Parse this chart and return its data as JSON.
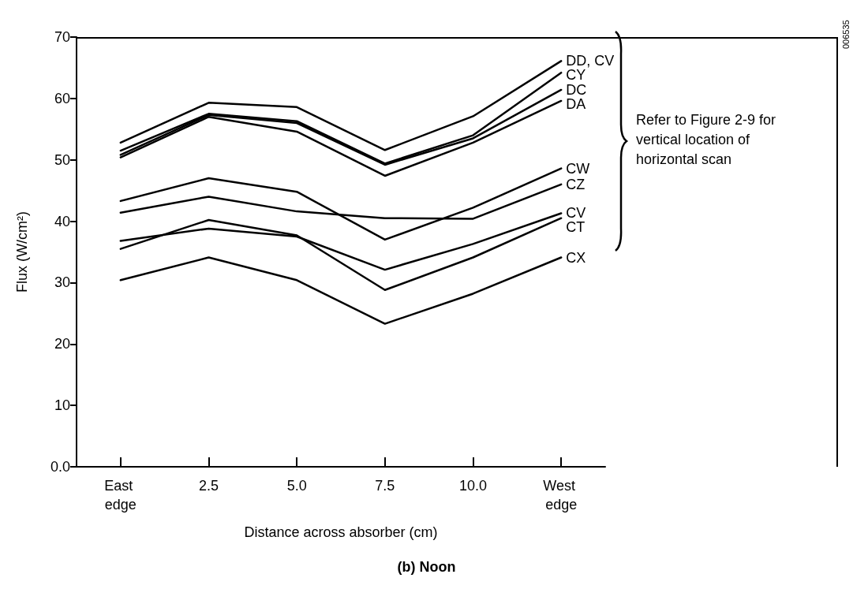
{
  "chart_data": {
    "type": "line",
    "title": "(b) Noon",
    "xlabel": "Distance across absorber (cm)",
    "ylabel": "Flux (W/cm²)",
    "categories": [
      "East edge",
      "2.5",
      "5.0",
      "7.5",
      "10.0",
      "West edge"
    ],
    "series": [
      {
        "name": "DD, CV",
        "color": "#000000",
        "values": [
          52.8,
          59.3,
          58.6,
          51.6,
          57.1,
          66.1
        ]
      },
      {
        "name": "CY",
        "color": "#000000",
        "values": [
          51.5,
          57.5,
          56.3,
          49.4,
          54.0,
          64.2
        ]
      },
      {
        "name": "DC",
        "color": "#000000",
        "values": [
          50.8,
          57.3,
          56.0,
          49.2,
          53.5,
          61.4
        ]
      },
      {
        "name": "DA",
        "color": "#000000",
        "values": [
          50.4,
          57.0,
          54.6,
          47.4,
          52.8,
          59.6
        ]
      },
      {
        "name": "CW",
        "color": "#000000",
        "values": [
          43.3,
          47.0,
          44.8,
          37.0,
          42.2,
          48.6
        ]
      },
      {
        "name": "CZ",
        "color": "#000000",
        "values": [
          41.4,
          44.0,
          41.6,
          40.5,
          40.4,
          46.0
        ]
      },
      {
        "name": "CV",
        "color": "#000000",
        "values": [
          36.8,
          38.8,
          37.5,
          32.1,
          36.3,
          41.3
        ]
      },
      {
        "name": "CT",
        "color": "#000000",
        "values": [
          35.5,
          40.2,
          37.7,
          28.8,
          34.1,
          40.5
        ]
      },
      {
        "name": "CX",
        "color": "#000000",
        "values": [
          30.4,
          34.1,
          30.4,
          23.3,
          28.2,
          34.1
        ]
      }
    ],
    "ylim": [
      0,
      70
    ],
    "yticks": [
      {
        "value": 0,
        "label": "0.0"
      },
      10,
      20,
      30,
      40,
      50,
      60,
      70
    ],
    "grid": false,
    "legend": false,
    "marker": "none",
    "line_style": "solid",
    "annotations": [
      "Refer to Figure 2-9 for vertical location of horizontal scan",
      "006535"
    ]
  }
}
